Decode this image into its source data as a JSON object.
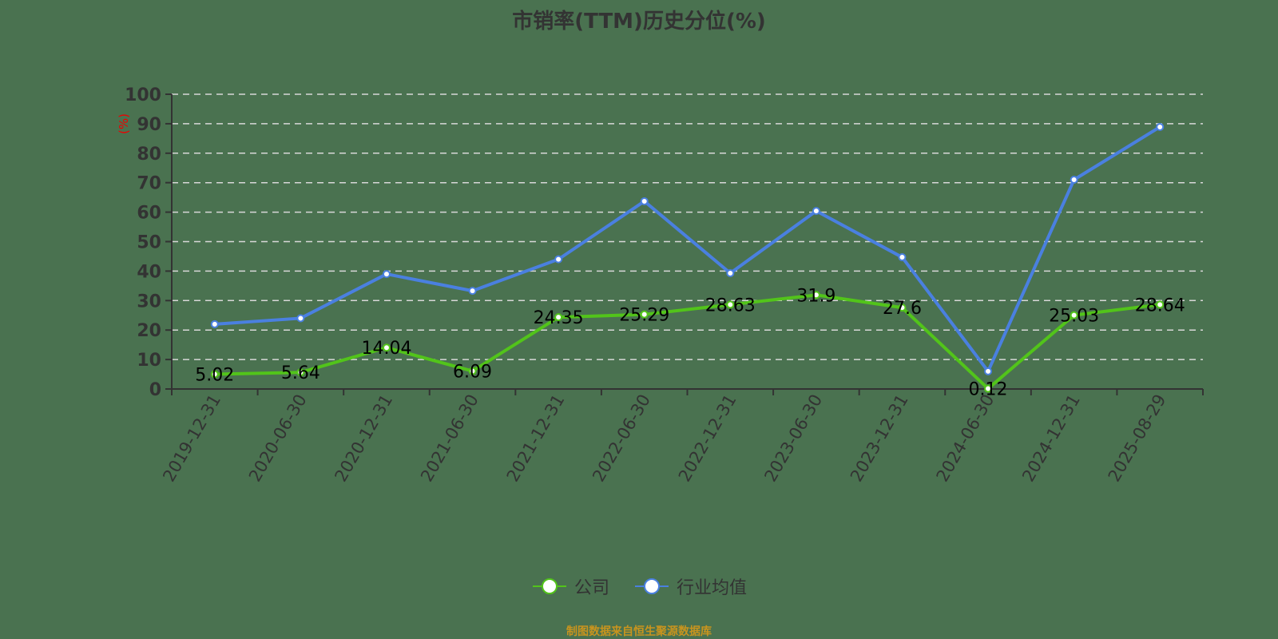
{
  "title": "市销率(TTM)历史分位(%)",
  "source": "制图数据来自恒生聚源数据库",
  "legend": [
    {
      "label": "公司",
      "color": "#52c41a"
    },
    {
      "label": "行业均值",
      "color": "#4a80e0"
    }
  ],
  "chart_data": {
    "type": "line",
    "title": "市销率(TTM)历史分位(%)",
    "xlabel": "",
    "ylabel": "(%)",
    "ylim": [
      0,
      100
    ],
    "yticks": [
      0,
      10,
      20,
      30,
      40,
      50,
      60,
      70,
      80,
      90,
      100
    ],
    "grid": "horizontal dashed",
    "legend_position": "bottom",
    "categories": [
      "2019-12-31",
      "2020-06-30",
      "2020-12-31",
      "2021-06-30",
      "2021-12-31",
      "2022-06-30",
      "2022-12-31",
      "2023-06-30",
      "2023-12-31",
      "2024-06-30",
      "2024-12-31",
      "2025-08-29"
    ],
    "series": [
      {
        "name": "公司",
        "color": "#52c41a",
        "values": [
          5.02,
          5.64,
          14.04,
          6.09,
          24.35,
          25.29,
          28.63,
          31.9,
          27.6,
          0.12,
          25.03,
          28.64
        ],
        "labels": [
          "5.02",
          "5.64",
          "14.04",
          "6.09",
          "24.35",
          "25.29",
          "28.63",
          "31.9",
          "27.6",
          "0.12",
          "25.03",
          "28.64"
        ]
      },
      {
        "name": "行业均值",
        "color": "#4a80e0",
        "values": [
          22,
          24,
          39,
          33.3,
          44,
          63.7,
          39.3,
          60.4,
          44.7,
          6,
          71,
          88.9
        ]
      }
    ]
  }
}
